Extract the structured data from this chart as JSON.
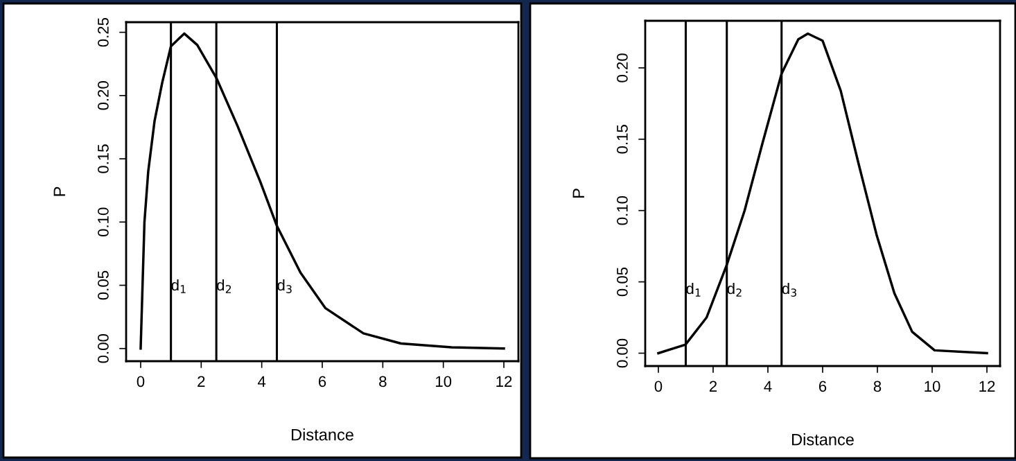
{
  "chart_data": [
    {
      "type": "line",
      "xlabel": "Distance",
      "ylabel": "P",
      "xlim": [
        -0.48,
        12.48
      ],
      "ylim": [
        -0.01,
        0.258
      ],
      "xticks": [
        0,
        2,
        4,
        6,
        8,
        10,
        12
      ],
      "yticks": [
        {
          "value": 0,
          "label": "0.00"
        },
        {
          "value": 0.05,
          "label": "0.05"
        },
        {
          "value": 0.1,
          "label": "0.10"
        },
        {
          "value": 0.15,
          "label": "0.15"
        },
        {
          "value": 0.2,
          "label": "0.20"
        },
        {
          "value": 0.25,
          "label": "0.25"
        }
      ],
      "grid": false,
      "series": [
        {
          "color": "#000000",
          "x": [
            0,
            0.125,
            0.25,
            0.46,
            0.71,
            1.0,
            1.44,
            1.87,
            2.5,
            3.2,
            3.95,
            4.5,
            5.28,
            6.1,
            7.36,
            8.6,
            10.27,
            12
          ],
          "values": [
            0,
            0.1,
            0.14,
            0.18,
            0.21,
            0.239,
            0.249,
            0.24,
            0.214,
            0.176,
            0.132,
            0.097,
            0.06,
            0.032,
            0.012,
            0.004,
            0.001,
            0
          ]
        }
      ],
      "ref_lines": [
        {
          "axis": "x",
          "value": 1,
          "label": "d$_{1}$",
          "color": "#000000"
        },
        {
          "axis": "x",
          "value": 2.5,
          "label": "d$_{2}$",
          "color": "#000000"
        },
        {
          "axis": "x",
          "value": 4.5,
          "label": "d$_{3}$",
          "color": "#000000"
        }
      ]
    },
    {
      "type": "line",
      "xlabel": "Distance",
      "ylabel": "P",
      "xlim": [
        -0.48,
        12.48
      ],
      "ylim": [
        -0.009,
        0.233
      ],
      "xticks": [
        0,
        2,
        4,
        6,
        8,
        10,
        12
      ],
      "yticks": [
        {
          "value": 0,
          "label": "0.00"
        },
        {
          "value": 0.05,
          "label": "0.05"
        },
        {
          "value": 0.1,
          "label": "0.10"
        },
        {
          "value": 0.15,
          "label": "0.15"
        },
        {
          "value": 0.2,
          "label": "0.20"
        }
      ],
      "grid": false,
      "series": [
        {
          "color": "#000000",
          "x": [
            0,
            0.99,
            1.76,
            2.5,
            3.15,
            3.8,
            4.5,
            5.11,
            5.46,
            6.0,
            6.66,
            7.31,
            7.97,
            8.62,
            9.27,
            10.09,
            12
          ],
          "values": [
            0,
            0.006,
            0.025,
            0.062,
            0.1,
            0.147,
            0.196,
            0.22,
            0.224,
            0.219,
            0.184,
            0.133,
            0.083,
            0.042,
            0.015,
            0.002,
            0
          ]
        }
      ],
      "ref_lines": [
        {
          "axis": "x",
          "value": 1,
          "label": "d$_{1}$",
          "color": "#000000"
        },
        {
          "axis": "x",
          "value": 2.5,
          "label": "d$_{2}$",
          "color": "#000000"
        },
        {
          "axis": "x",
          "value": 4.5,
          "label": "d$_{3}$",
          "color": "#000000"
        }
      ]
    }
  ]
}
